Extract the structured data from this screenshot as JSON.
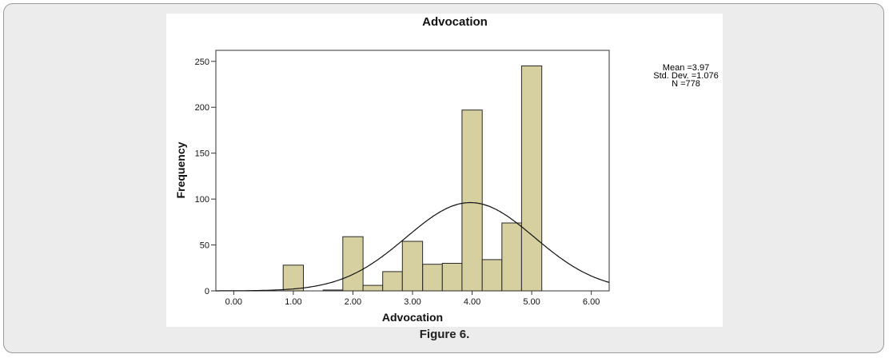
{
  "caption": "Figure 6.",
  "stats": {
    "mean": "Mean =3.97",
    "std_dev": "Std. Dev. =1.076",
    "n": "N =778"
  },
  "colors": {
    "bar_fill": "#d6cf9f",
    "bar_stroke": "#2a2a2a",
    "curve": "#111111"
  },
  "chart_data": {
    "type": "bar",
    "title": "Advocation",
    "xlabel": "Advocation",
    "ylabel": "Frequency",
    "xlim": [
      -0.3,
      6.3
    ],
    "ylim": [
      0,
      262
    ],
    "xticks": [
      0,
      1,
      2,
      3,
      4,
      5,
      6
    ],
    "xtick_labels": [
      "0.00",
      "1.00",
      "2.00",
      "3.00",
      "4.00",
      "5.00",
      "6.00"
    ],
    "yticks": [
      0,
      50,
      100,
      150,
      200,
      250
    ],
    "ytick_labels": [
      "0",
      "50",
      "100",
      "150",
      "200",
      "250"
    ],
    "grid": false,
    "bins": [
      {
        "x0": 0.83,
        "x1": 1.17,
        "count": 28
      },
      {
        "x0": 1.5,
        "x1": 1.83,
        "count": 1
      },
      {
        "x0": 1.83,
        "x1": 2.17,
        "count": 59
      },
      {
        "x0": 2.17,
        "x1": 2.5,
        "count": 6
      },
      {
        "x0": 2.5,
        "x1": 2.83,
        "count": 21
      },
      {
        "x0": 2.83,
        "x1": 3.17,
        "count": 54
      },
      {
        "x0": 3.17,
        "x1": 3.5,
        "count": 29
      },
      {
        "x0": 3.5,
        "x1": 3.83,
        "count": 30
      },
      {
        "x0": 3.83,
        "x1": 4.17,
        "count": 197
      },
      {
        "x0": 4.17,
        "x1": 4.5,
        "count": 34
      },
      {
        "x0": 4.5,
        "x1": 4.83,
        "count": 74
      },
      {
        "x0": 4.83,
        "x1": 5.17,
        "count": 245
      }
    ],
    "normal_curve": {
      "mean": 3.97,
      "std_dev": 1.076,
      "n": 778
    }
  }
}
